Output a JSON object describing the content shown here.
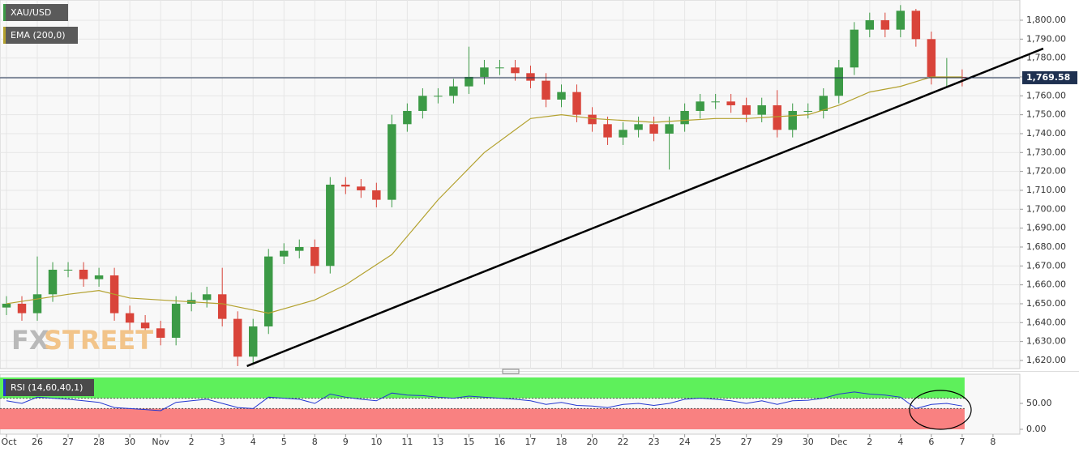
{
  "chart_data": [
    {
      "type": "candlestick",
      "series": [
        {
          "name": "XAU/USD",
          "up_color": "#3c9a46",
          "down_color": "#d9443a",
          "x": [
            0,
            0.5,
            1,
            1.5,
            2,
            2.5,
            3,
            3.5,
            4,
            4.5,
            5,
            5.5,
            6,
            6.5,
            7,
            7.5,
            8,
            8.5,
            9,
            9.5,
            10,
            10.5,
            11,
            11.5,
            12,
            12.5,
            13,
            13.5,
            14,
            14.5,
            15,
            15.5,
            16,
            16.5,
            17,
            17.5,
            18,
            18.5,
            19,
            19.5,
            20,
            20.5,
            21,
            21.5,
            22,
            22.5,
            23,
            23.5,
            24,
            24.5,
            25,
            25.5,
            26,
            26.5,
            27,
            27.5,
            28,
            28.5,
            29,
            29.5,
            30,
            30.5,
            31
          ],
          "open": [
            1648,
            1650,
            1645,
            1655,
            1668,
            1668,
            1663,
            1665,
            1645,
            1640,
            1637,
            1632,
            1650,
            1652,
            1655,
            1642,
            1622,
            1638,
            1675,
            1678,
            1680,
            1670,
            1713,
            1712,
            1710,
            1705,
            1745,
            1752,
            1760,
            1760,
            1765,
            1770,
            1775,
            1775,
            1772,
            1768,
            1758,
            1762,
            1750,
            1745,
            1738,
            1742,
            1745,
            1740,
            1745,
            1752,
            1757,
            1757,
            1755,
            1750,
            1755,
            1742,
            1752,
            1752,
            1760,
            1775,
            1795,
            1800,
            1795,
            1805,
            1790,
            1770,
            1770
          ],
          "high": [
            1654,
            1654,
            1675,
            1672,
            1672,
            1672,
            1669,
            1669,
            1649,
            1644,
            1641,
            1654,
            1656,
            1659,
            1669,
            1646,
            1642,
            1679,
            1682,
            1684,
            1684,
            1717,
            1717,
            1716,
            1714,
            1750,
            1756,
            1764,
            1764,
            1769,
            1786,
            1779,
            1779,
            1779,
            1776,
            1772,
            1766,
            1766,
            1754,
            1749,
            1746,
            1749,
            1749,
            1749,
            1756,
            1761,
            1761,
            1761,
            1759,
            1759,
            1763,
            1756,
            1756,
            1764,
            1779,
            1799,
            1804,
            1804,
            1808,
            1806,
            1794,
            1780,
            1774
          ],
          "low": [
            1644,
            1641,
            1641,
            1651,
            1664,
            1659,
            1659,
            1641,
            1636,
            1633,
            1628,
            1628,
            1646,
            1648,
            1638,
            1617,
            1618,
            1634,
            1671,
            1674,
            1666,
            1666,
            1708,
            1706,
            1701,
            1701,
            1741,
            1748,
            1756,
            1756,
            1761,
            1766,
            1771,
            1768,
            1764,
            1754,
            1754,
            1746,
            1741,
            1734,
            1734,
            1738,
            1736,
            1721,
            1741,
            1748,
            1753,
            1751,
            1746,
            1746,
            1738,
            1738,
            1748,
            1748,
            1756,
            1771,
            1791,
            1791,
            1791,
            1786,
            1766,
            1765,
            1765
          ],
          "close": [
            1650,
            1645,
            1655,
            1668,
            1668,
            1663,
            1665,
            1645,
            1640,
            1637,
            1632,
            1650,
            1652,
            1655,
            1642,
            1622,
            1638,
            1675,
            1678,
            1680,
            1670,
            1713,
            1712,
            1710,
            1705,
            1745,
            1752,
            1760,
            1760,
            1765,
            1770,
            1775,
            1775,
            1772,
            1768,
            1758,
            1762,
            1750,
            1745,
            1738,
            1742,
            1745,
            1740,
            1745,
            1752,
            1757,
            1757,
            1755,
            1750,
            1755,
            1742,
            1752,
            1752,
            1760,
            1775,
            1795,
            1800,
            1795,
            1805,
            1790,
            1770,
            1770,
            1769.58
          ]
        },
        {
          "name": "EMA (200,0)",
          "color": "#b3a12e",
          "x": [
            0,
            2,
            3,
            4,
            5,
            7,
            8.5,
            10,
            11,
            12.5,
            14,
            15.5,
            17,
            18,
            19,
            20,
            21,
            22,
            23,
            24,
            25,
            26,
            27,
            28,
            29,
            30,
            31
          ],
          "values": [
            1650,
            1655,
            1657,
            1653,
            1652,
            1650,
            1645,
            1652,
            1660,
            1676,
            1705,
            1730,
            1748,
            1750,
            1748,
            1747,
            1746,
            1747,
            1748,
            1748,
            1749,
            1750,
            1755,
            1762,
            1765,
            1770,
            1770
          ]
        }
      ],
      "trendline": {
        "x": [
          7.8,
          33.63
        ],
        "values": [
          1617,
          1785
        ],
        "color": "#000000"
      },
      "last_price": {
        "value": 1769.58,
        "label": "1,769.58"
      },
      "watermark": [
        "FX",
        "STREET"
      ],
      "xlim": [
        -0.21,
        32.87
      ],
      "ylim": [
        1615.7,
        1810.7
      ],
      "yticks": [
        {
          "value": 1620,
          "label": "1,620.00"
        },
        {
          "value": 1630,
          "label": "1,630.00"
        },
        {
          "value": 1640,
          "label": "1,640.00"
        },
        {
          "value": 1650,
          "label": "1,650.00"
        },
        {
          "value": 1660,
          "label": "1,660.00"
        },
        {
          "value": 1670,
          "label": "1,670.00"
        },
        {
          "value": 1680,
          "label": "1,680.00"
        },
        {
          "value": 1690,
          "label": "1,690.00"
        },
        {
          "value": 1700,
          "label": "1,700.00"
        },
        {
          "value": 1710,
          "label": "1,710.00"
        },
        {
          "value": 1720,
          "label": "1,720.00"
        },
        {
          "value": 1730,
          "label": "1,730.00"
        },
        {
          "value": 1740,
          "label": "1,740.00"
        },
        {
          "value": 1750,
          "label": "1,750.00"
        },
        {
          "value": 1760,
          "label": "1,760.00"
        },
        {
          "value": 1770,
          "label": "1,770.00"
        },
        {
          "value": 1780,
          "label": "1,780.00"
        },
        {
          "value": 1790,
          "label": "1,790.00"
        },
        {
          "value": 1800,
          "label": "1,800.00"
        }
      ],
      "grid": true
    },
    {
      "type": "line",
      "series": [
        {
          "name": "RSI (14,60,40,1)",
          "color": "#2437d0",
          "x": [
            0,
            0.5,
            1,
            1.5,
            2,
            2.5,
            3,
            3.5,
            4,
            4.5,
            5,
            5.5,
            6,
            6.5,
            7,
            7.5,
            8,
            8.5,
            9,
            9.5,
            10,
            10.5,
            11,
            11.5,
            12,
            12.5,
            13,
            13.5,
            14,
            14.5,
            15,
            15.5,
            16,
            16.5,
            17,
            17.5,
            18,
            18.5,
            19,
            19.5,
            20,
            20.5,
            21,
            21.5,
            22,
            22.5,
            23,
            23.5,
            24,
            24.5,
            25,
            25.5,
            26,
            26.5,
            27,
            27.5,
            28,
            28.5,
            29,
            29.5,
            30,
            30.5,
            31
          ],
          "values": [
            55,
            50,
            62,
            60,
            58,
            55,
            52,
            42,
            40,
            38,
            36,
            52,
            55,
            58,
            50,
            42,
            40,
            62,
            60,
            58,
            50,
            68,
            62,
            58,
            55,
            70,
            66,
            65,
            62,
            60,
            64,
            62,
            60,
            58,
            55,
            48,
            52,
            46,
            45,
            42,
            48,
            50,
            46,
            50,
            58,
            60,
            58,
            55,
            50,
            55,
            48,
            55,
            56,
            60,
            68,
            72,
            68,
            66,
            62,
            40,
            48,
            50,
            45
          ]
        }
      ],
      "zones": [
        {
          "from": 60,
          "to": 100,
          "color": "#5ef05b"
        },
        {
          "from": 0,
          "to": 40,
          "color": "#f98181"
        }
      ],
      "xlim": [
        -0.21,
        32.87
      ],
      "x_labels": [
        "Oct",
        "26",
        "27",
        "28",
        "30",
        "Nov",
        "2",
        "3",
        "4",
        "5",
        "8",
        "9",
        "10",
        "11",
        "13",
        "15",
        "16",
        "17",
        "18",
        "20",
        "22",
        "23",
        "24",
        "25",
        "27",
        "29",
        "30",
        "Dec",
        "2",
        "4",
        "6",
        "7",
        "8"
      ],
      "ylim": [
        -9.4,
        106.25
      ],
      "yticks": [
        {
          "value": 0,
          "label": "0.00"
        },
        {
          "value": 50,
          "label": "50.00"
        }
      ],
      "grid": true
    }
  ]
}
